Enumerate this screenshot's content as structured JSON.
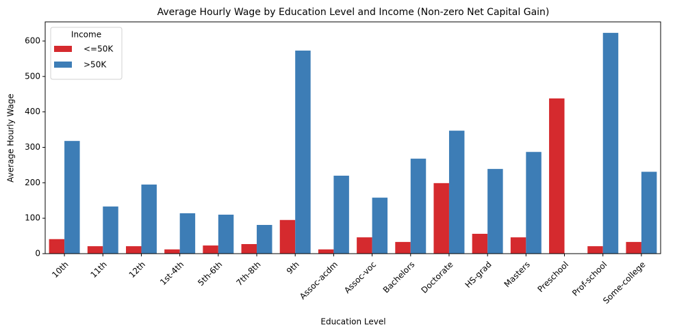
{
  "chart_data": {
    "type": "bar",
    "title": "Average Hourly Wage by Education Level and Income (Non-zero Net Capital Gain)",
    "x_label": "Education Level",
    "y_label": "Average Hourly Wage",
    "legend_title": "Income",
    "legend_position": "upper left",
    "categories": [
      "10th",
      "11th",
      "12th",
      "1st-4th",
      "5th-6th",
      "7th-8th",
      "9th",
      "Assoc-acdm",
      "Assoc-voc",
      "Bachelors",
      "Doctorate",
      "HS-grad",
      "Masters",
      "Preschool",
      "Prof-school",
      "Some-college"
    ],
    "series": [
      {
        "name": "<=50K",
        "color": "#d52a2e",
        "values": [
          41,
          21,
          21,
          12,
          23,
          27,
          95,
          12,
          46,
          33,
          199,
          56,
          46,
          438,
          21,
          33
        ]
      },
      {
        "name": ">50K",
        "color": "#3d7db6",
        "values": [
          318,
          133,
          195,
          114,
          110,
          81,
          573,
          220,
          158,
          268,
          347,
          239,
          287,
          null,
          623,
          231
        ]
      }
    ],
    "ylim": [
      0,
      654
    ],
    "yticks": [
      0,
      100,
      200,
      300,
      400,
      500,
      600
    ],
    "grid": false
  }
}
